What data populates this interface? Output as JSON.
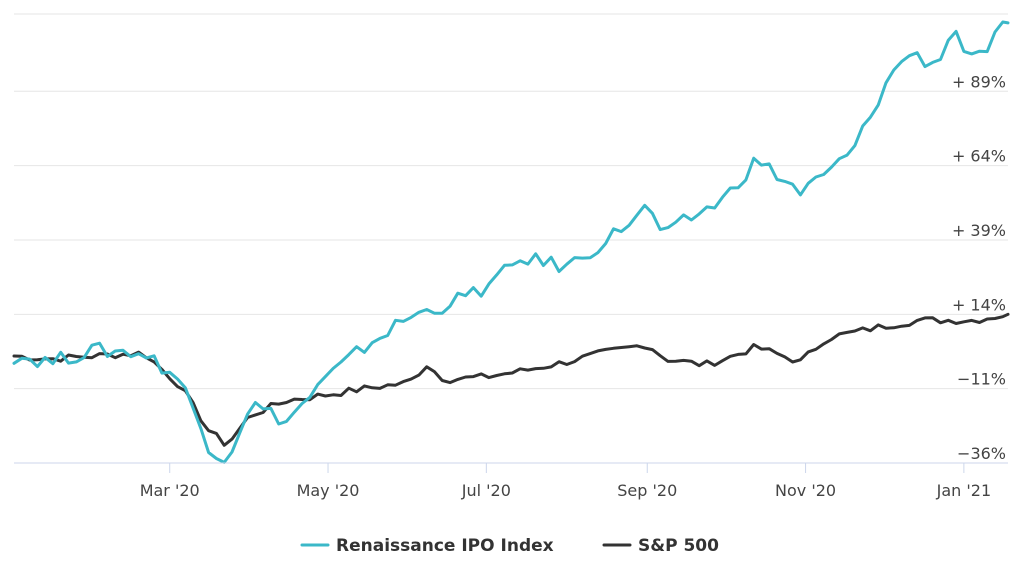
{
  "chart_data": {
    "type": "line",
    "y_ticks": [
      "−36%",
      "−11%",
      "+ 14%",
      "+ 39%",
      "+ 64%",
      "+ 89%"
    ],
    "y_tick_values": [
      -36,
      -11,
      14,
      39,
      64,
      89
    ],
    "ylim": [
      -36,
      115
    ],
    "x_ticks": [
      "Mar '20",
      "May '20",
      "Jul '20",
      "Sep '20",
      "Nov '20",
      "Jan '21"
    ],
    "x_tick_dates": [
      "2020-03-01",
      "2020-05-01",
      "2020-07-01",
      "2020-09-01",
      "2020-11-01",
      "2021-01-01"
    ],
    "xlim": [
      "2020-01-01",
      "2021-01-18"
    ],
    "grid": true,
    "legend_position": "bottom",
    "series": [
      {
        "name": "Renaissance IPO Index",
        "color": "#3bb8c8",
        "x": [
          "2020-01-01",
          "2020-01-15",
          "2020-02-01",
          "2020-02-20",
          "2020-03-05",
          "2020-03-16",
          "2020-03-23",
          "2020-04-01",
          "2020-04-15",
          "2020-05-01",
          "2020-05-15",
          "2020-06-01",
          "2020-06-15",
          "2020-07-01",
          "2020-07-15",
          "2020-08-01",
          "2020-08-15",
          "2020-09-01",
          "2020-09-08",
          "2020-09-15",
          "2020-10-01",
          "2020-10-13",
          "2020-10-30",
          "2020-11-09",
          "2020-11-20",
          "2020-12-01",
          "2020-12-10",
          "2020-12-21",
          "2020-12-28",
          "2021-01-05",
          "2021-01-18"
        ],
        "y": [
          0,
          -2,
          2,
          1,
          -8,
          -30,
          -35,
          -16,
          -22,
          -7,
          3,
          13,
          17,
          23,
          33,
          30,
          38,
          50,
          40,
          45,
          53,
          66,
          55,
          61,
          70,
          90,
          102,
          98,
          110,
          98,
          112
        ]
      },
      {
        "name": "S&P 500",
        "color": "#333333",
        "x": [
          "2020-01-01",
          "2020-01-15",
          "2020-02-01",
          "2020-02-20",
          "2020-03-05",
          "2020-03-16",
          "2020-03-23",
          "2020-04-01",
          "2020-04-15",
          "2020-05-01",
          "2020-05-15",
          "2020-06-01",
          "2020-06-08",
          "2020-06-15",
          "2020-07-01",
          "2020-07-15",
          "2020-08-01",
          "2020-08-15",
          "2020-09-01",
          "2020-09-08",
          "2020-09-23",
          "2020-10-01",
          "2020-10-13",
          "2020-10-30",
          "2020-11-09",
          "2020-11-20",
          "2020-12-01",
          "2020-12-15",
          "2021-01-05",
          "2021-01-18"
        ],
        "y": [
          0,
          -1,
          0,
          1,
          -10,
          -25,
          -30,
          -20,
          -15,
          -13,
          -11,
          -9,
          -3,
          -8,
          -7,
          -5,
          -2,
          1,
          4,
          -1,
          -3,
          -1,
          3,
          -2,
          6,
          8,
          10,
          12,
          12,
          14
        ]
      }
    ]
  }
}
